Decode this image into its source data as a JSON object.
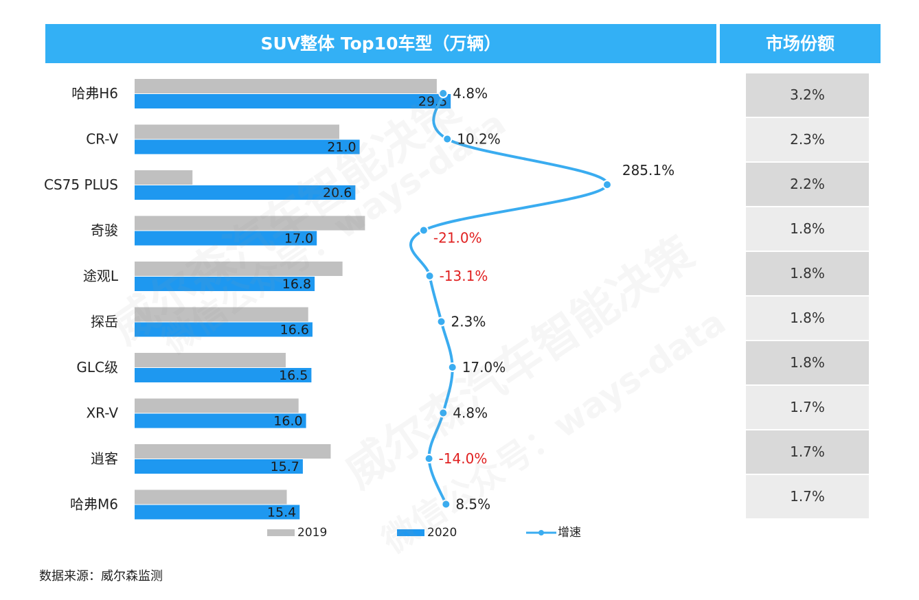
{
  "header": {
    "title": "SUV整体 Top10车型（万辆）",
    "share_title": "市场份额"
  },
  "chart_data": {
    "type": "bar",
    "orientation": "horizontal",
    "title": "SUV整体 Top10车型（万辆）",
    "categories": [
      "哈弗H6",
      "CR-V",
      "CS75 PLUS",
      "奇骏",
      "途观L",
      "探岳",
      "GLC级",
      "XR-V",
      "逍客",
      "哈弗M6"
    ],
    "series": [
      {
        "name": "2019",
        "values": [
          28.2,
          19.1,
          5.4,
          21.5,
          19.4,
          16.2,
          14.1,
          15.3,
          18.3,
          14.2
        ],
        "color": "#c0c0c0"
      },
      {
        "name": "2020",
        "values": [
          29.5,
          21.0,
          20.6,
          17.0,
          16.8,
          16.6,
          16.5,
          16.0,
          15.7,
          15.4
        ],
        "color": "#1e98f0"
      }
    ],
    "growth": {
      "name": "增速",
      "values": [
        4.8,
        10.2,
        285.1,
        -21.0,
        -13.1,
        2.3,
        17.0,
        4.8,
        -14.0,
        8.5
      ],
      "labels": [
        "4.8%",
        "10.2%",
        "285.1%",
        "-21.0%",
        "-13.1%",
        "2.3%",
        "17.0%",
        "4.8%",
        "-14.0%",
        "8.5%"
      ],
      "color": "#3aacf0"
    },
    "value_labels": [
      "29.5",
      "21.0",
      "20.6",
      "17.0",
      "16.8",
      "16.6",
      "16.5",
      "16.0",
      "15.7",
      "15.4"
    ],
    "market_share": [
      "3.2%",
      "2.3%",
      "2.2%",
      "1.8%",
      "1.8%",
      "1.8%",
      "1.8%",
      "1.7%",
      "1.7%",
      "1.7%"
    ],
    "legend": [
      "2019",
      "2020",
      "增速"
    ],
    "negative_color": "#e02020",
    "legend_position": "bottom"
  },
  "source": "数据来源：威尔森监测",
  "watermark": {
    "line1": "威尔森汽车智能决策",
    "line2": "微信公众号：ways-data"
  }
}
